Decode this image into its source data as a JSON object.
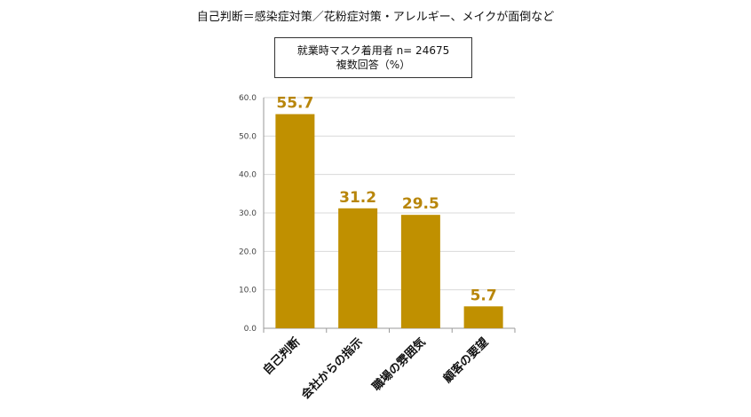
{
  "chart_data": {
    "type": "bar",
    "title": "自己判断＝感染症対策／花粉症対策・アレルギー、メイクが面倒など",
    "legend_lines": [
      "就業時マスク着用者 n= 24675",
      "複数回答（%）"
    ],
    "categories": [
      "自己判断",
      "会社からの指示",
      "職場の雰囲気",
      "顧客の要望"
    ],
    "values": [
      55.7,
      31.2,
      29.5,
      5.7
    ],
    "value_labels": [
      "55.7",
      "31.2",
      "29.5",
      "5.7"
    ],
    "y_ticks": [
      "0.0",
      "10.0",
      "20.0",
      "30.0",
      "40.0",
      "50.0",
      "60.0"
    ],
    "ylim": [
      0,
      60
    ],
    "grid": true,
    "bar_color": "#c09000",
    "label_color": "#b8860b"
  }
}
